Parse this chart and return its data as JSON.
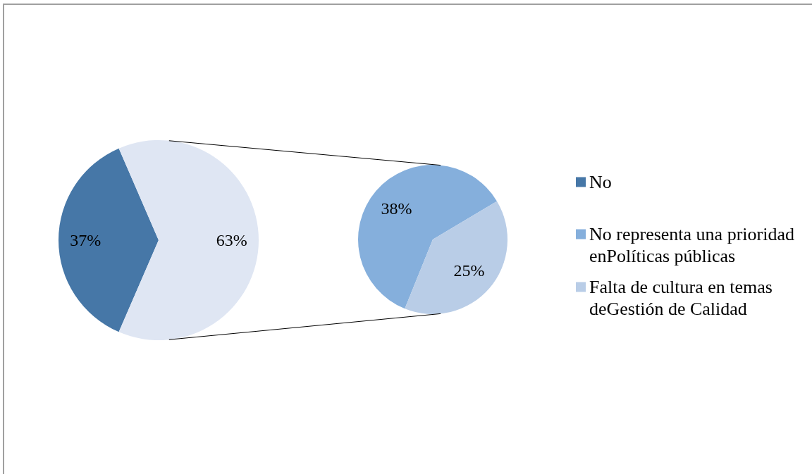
{
  "chart_data": [
    {
      "type": "pie",
      "categories": [
        "No",
        null
      ],
      "values": [
        37,
        63
      ],
      "colors": [
        "#4677a7",
        "#dfe6f3"
      ],
      "value_labels": [
        "37%",
        "63%"
      ],
      "legend": "right"
    },
    {
      "type": "pie",
      "categories": [
        "No representa una prioridad enPolíticas públicas",
        "Falta de cultura en temas deGestión de Calidad"
      ],
      "values": [
        38,
        25
      ],
      "colors": [
        "#85afdc",
        "#b9cde7"
      ],
      "value_labels": [
        "38%",
        "25%"
      ],
      "legend": "right"
    }
  ]
}
